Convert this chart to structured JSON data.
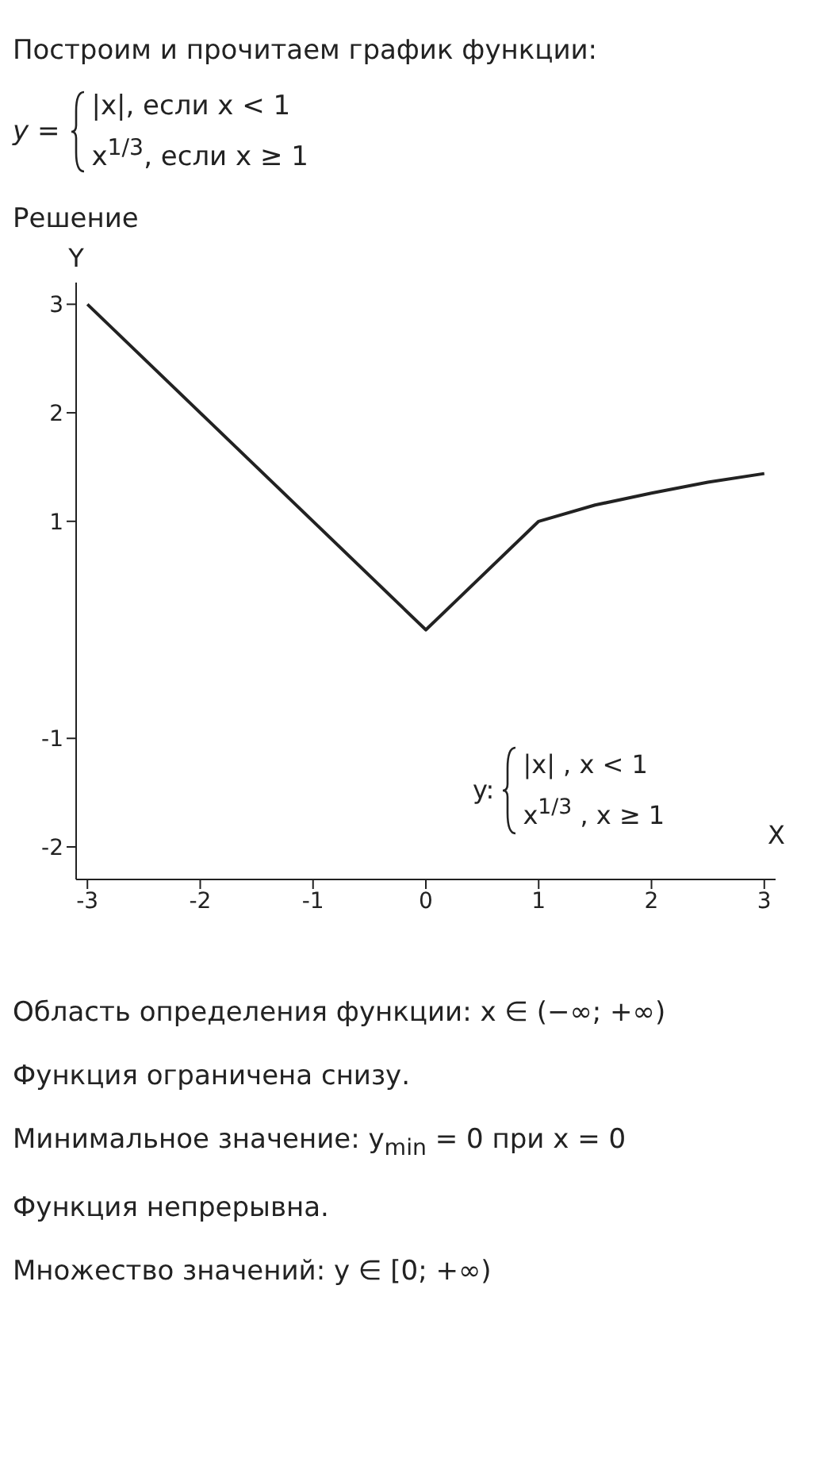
{
  "chart_data": {
    "type": "line",
    "title": "Построим и прочитаем график функции:",
    "subtitle": "Решение",
    "xlabel": "X",
    "ylabel": "Y",
    "annotations": [
      "y =",
      "|x|,      если x < 1",
      "x$^{1/3}$,     если  x ≥ 1",
      "y:",
      "|x| , x < 1",
      "x$^{1/3}$ , x ≥ 1",
      "Область определения функции: x ∈ (−∞; +∞)",
      "Функция ограничена снизу.",
      "Минимальное значение: y$_{min}$ = 0  при x = 0",
      "Функция непрерывна.",
      "Множество значений: y ∈ [0; +∞)"
    ],
    "series": [
      {
        "color": "#222222",
        "x": [
          -3,
          0,
          1,
          1.5,
          2,
          2.5,
          3
        ],
        "values": [
          3,
          0,
          1,
          1.15,
          1.26,
          1.36,
          1.44
        ]
      }
    ],
    "xlim": [
      -3.1,
      3.1
    ],
    "ylim": [
      -2.3,
      3.2
    ],
    "xticks": [
      -3,
      -2,
      -1,
      0,
      1,
      2,
      3
    ],
    "yticks": [
      -2,
      -1,
      1,
      2,
      3
    ],
    "grid": false,
    "marker": "none",
    "line_style": "solid"
  }
}
